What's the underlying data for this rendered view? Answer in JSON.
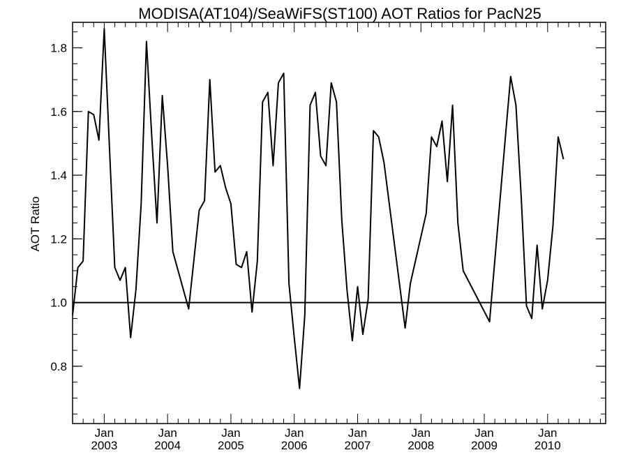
{
  "chart_data": {
    "type": "line",
    "title": "MODISA(AT104)/SeaWiFS(ST100)  AOT Ratios for PacN25",
    "ylabel": "AOT Ratio",
    "xlabel": "",
    "ylim": [
      0.62,
      1.88
    ],
    "y_ticks": [
      0.8,
      1.0,
      1.2,
      1.4,
      1.6,
      1.8
    ],
    "y_minor_step": 0.05,
    "x_range": [
      "2002-07",
      "2010-12"
    ],
    "x_ticks": [
      {
        "month": "Jan",
        "year": "2003",
        "at": "2003-01"
      },
      {
        "month": "Jan",
        "year": "2004",
        "at": "2004-01"
      },
      {
        "month": "Jan",
        "year": "2005",
        "at": "2005-01"
      },
      {
        "month": "Jan",
        "year": "2006",
        "at": "2006-01"
      },
      {
        "month": "Jan",
        "year": "2007",
        "at": "2007-01"
      },
      {
        "month": "Jan",
        "year": "2008",
        "at": "2008-01"
      },
      {
        "month": "Jan",
        "year": "2009",
        "at": "2009-01"
      },
      {
        "month": "Jan",
        "year": "2010",
        "at": "2010-01"
      }
    ],
    "reference_line": 1.0,
    "grid": false,
    "series": [
      {
        "color": "#000000",
        "points": [
          [
            "2002-07",
            0.96
          ],
          [
            "2002-08",
            1.11
          ],
          [
            "2002-09",
            1.13
          ],
          [
            "2002-10",
            1.6
          ],
          [
            "2002-11",
            1.59
          ],
          [
            "2002-12",
            1.51
          ],
          [
            "2003-01",
            1.86
          ],
          [
            "2003-02",
            1.48
          ],
          [
            "2003-03",
            1.11
          ],
          [
            "2003-04",
            1.07
          ],
          [
            "2003-05",
            1.11
          ],
          [
            "2003-06",
            0.89
          ],
          [
            "2003-07",
            1.04
          ],
          [
            "2003-08",
            1.31
          ],
          [
            "2003-09",
            1.82
          ],
          [
            "2003-10",
            1.52
          ],
          [
            "2003-11",
            1.25
          ],
          [
            "2003-12",
            1.65
          ],
          [
            "2004-01",
            1.43
          ],
          [
            "2004-02",
            1.16
          ],
          [
            "2004-05",
            0.98
          ],
          [
            "2004-07",
            1.29
          ],
          [
            "2004-08",
            1.32
          ],
          [
            "2004-09",
            1.7
          ],
          [
            "2004-10",
            1.41
          ],
          [
            "2004-11",
            1.43
          ],
          [
            "2004-12",
            1.36
          ],
          [
            "2005-01",
            1.31
          ],
          [
            "2005-02",
            1.12
          ],
          [
            "2005-03",
            1.11
          ],
          [
            "2005-04",
            1.16
          ],
          [
            "2005-05",
            0.97
          ],
          [
            "2005-06",
            1.13
          ],
          [
            "2005-07",
            1.63
          ],
          [
            "2005-08",
            1.66
          ],
          [
            "2005-09",
            1.43
          ],
          [
            "2005-10",
            1.69
          ],
          [
            "2005-11",
            1.72
          ],
          [
            "2005-12",
            1.06
          ],
          [
            "2006-01",
            0.89
          ],
          [
            "2006-02",
            0.73
          ],
          [
            "2006-03",
            0.96
          ],
          [
            "2006-04",
            1.62
          ],
          [
            "2006-05",
            1.66
          ],
          [
            "2006-06",
            1.46
          ],
          [
            "2006-07",
            1.43
          ],
          [
            "2006-08",
            1.69
          ],
          [
            "2006-09",
            1.63
          ],
          [
            "2006-10",
            1.26
          ],
          [
            "2006-11",
            1.04
          ],
          [
            "2006-12",
            0.88
          ],
          [
            "2007-01",
            1.05
          ],
          [
            "2007-02",
            0.9
          ],
          [
            "2007-03",
            1.01
          ],
          [
            "2007-04",
            1.54
          ],
          [
            "2007-05",
            1.52
          ],
          [
            "2007-06",
            1.44
          ],
          [
            "2007-10",
            0.92
          ],
          [
            "2007-11",
            1.06
          ],
          [
            "2008-02",
            1.28
          ],
          [
            "2008-03",
            1.52
          ],
          [
            "2008-04",
            1.49
          ],
          [
            "2008-05",
            1.57
          ],
          [
            "2008-06",
            1.38
          ],
          [
            "2008-07",
            1.62
          ],
          [
            "2008-08",
            1.25
          ],
          [
            "2008-09",
            1.1
          ],
          [
            "2009-02",
            0.94
          ],
          [
            "2009-05",
            1.52
          ],
          [
            "2009-06",
            1.71
          ],
          [
            "2009-07",
            1.62
          ],
          [
            "2009-08",
            1.33
          ],
          [
            "2009-09",
            0.99
          ],
          [
            "2009-10",
            0.95
          ],
          [
            "2009-11",
            1.18
          ],
          [
            "2009-12",
            0.98
          ],
          [
            "2010-01",
            1.07
          ],
          [
            "2010-02",
            1.24
          ],
          [
            "2010-03",
            1.52
          ],
          [
            "2010-04",
            1.45
          ]
        ]
      }
    ]
  }
}
